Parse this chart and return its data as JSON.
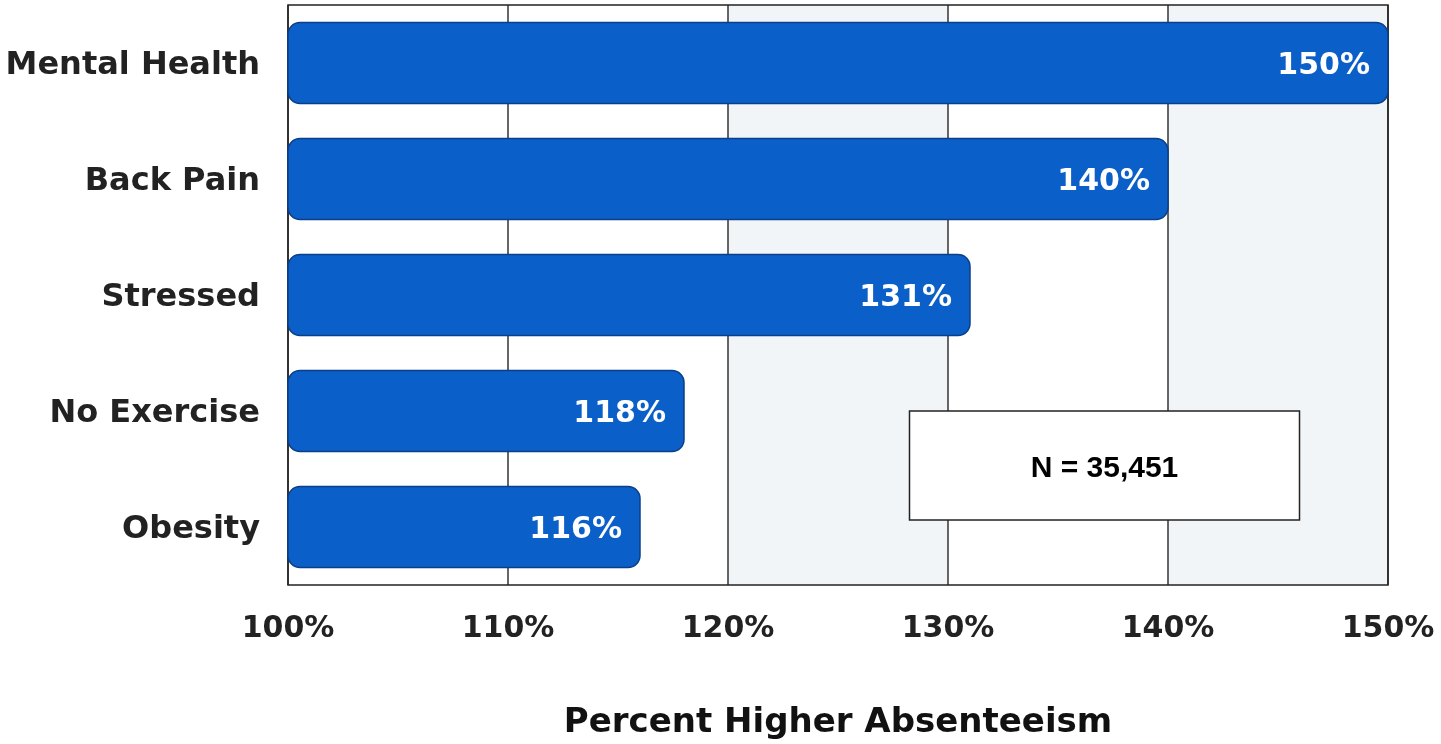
{
  "chart_data": {
    "type": "bar",
    "orientation": "horizontal",
    "xlabel": "Percent Higher Absenteeism",
    "categories": [
      "Mental Health",
      "Back Pain",
      "Stressed",
      "No Exercise",
      "Obesity"
    ],
    "values": [
      150,
      140,
      131,
      118,
      116
    ],
    "value_labels": [
      "150%",
      "140%",
      "131%",
      "118%",
      "116%"
    ],
    "color": "#0b5fc8",
    "xlim": [
      100,
      150
    ],
    "xticks": [
      {
        "value": 100,
        "label": "100%"
      },
      {
        "value": 110,
        "label": "110%"
      },
      {
        "value": 120,
        "label": "120%"
      },
      {
        "value": 130,
        "label": "130%"
      },
      {
        "value": 140,
        "label": "140%"
      },
      {
        "value": 150,
        "label": "150%"
      }
    ],
    "grid": "x",
    "bands": [
      {
        "axis": "x",
        "from": 120,
        "to": 130,
        "color": "#f1f5f8"
      },
      {
        "axis": "x",
        "from": 140,
        "to": 150,
        "color": "#f1f5f8"
      }
    ],
    "annotations": [
      "N = 35,451"
    ]
  }
}
